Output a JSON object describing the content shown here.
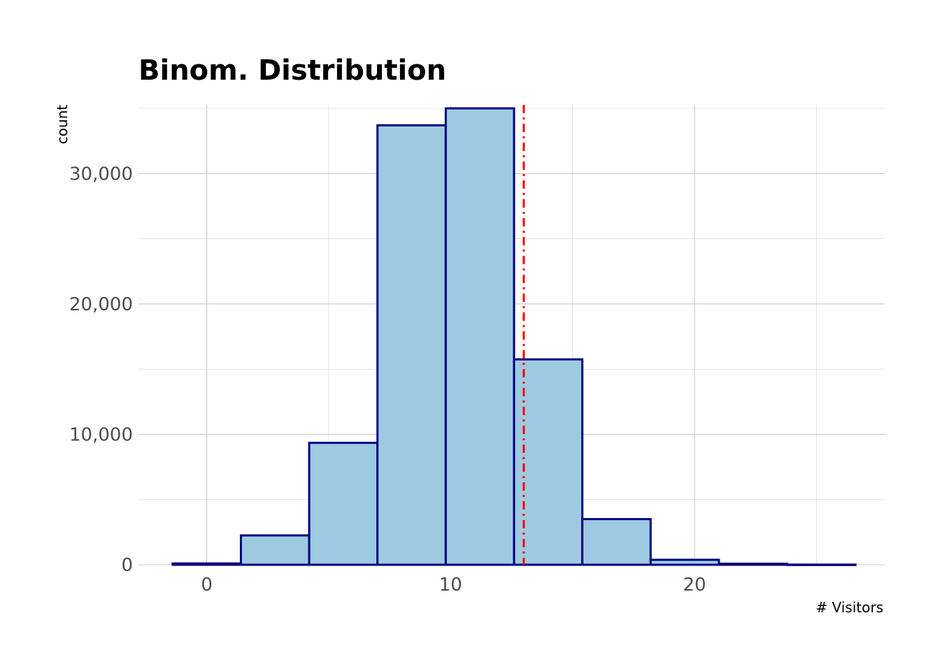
{
  "chart_data": {
    "type": "bar",
    "title": "Binom. Distribution",
    "xlabel": "# Visitors",
    "ylabel": "count",
    "bins": [
      {
        "x0": -1.4,
        "x1": 1.4,
        "count": 100
      },
      {
        "x0": 1.4,
        "x1": 4.2,
        "count": 2250
      },
      {
        "x0": 4.2,
        "x1": 7.0,
        "count": 9350
      },
      {
        "x0": 7.0,
        "x1": 9.8,
        "count": 33700
      },
      {
        "x0": 9.8,
        "x1": 12.6,
        "count": 35000
      },
      {
        "x0": 12.6,
        "x1": 15.4,
        "count": 15750
      },
      {
        "x0": 15.4,
        "x1": 18.2,
        "count": 3500
      },
      {
        "x0": 18.2,
        "x1": 21.0,
        "count": 380
      },
      {
        "x0": 21.0,
        "x1": 23.8,
        "count": 80
      },
      {
        "x0": 23.8,
        "x1": 26.6,
        "count": 10
      }
    ],
    "xlim": [
      -2.8,
      27.8
    ],
    "ylim": [
      0,
      35000
    ],
    "x_ticks": [
      0,
      10,
      20
    ],
    "x_tick_labels": [
      "0",
      "10",
      "20"
    ],
    "y_ticks": [
      0,
      10000,
      20000,
      30000
    ],
    "y_tick_labels": [
      "0",
      "10,000",
      "20,000",
      "30,000"
    ],
    "reference_line": {
      "x": 13.0,
      "style": "dot-dash",
      "color": "#ff0000"
    },
    "bar_fill": "#9ecae1",
    "bar_stroke": "#000080",
    "grid": true
  }
}
